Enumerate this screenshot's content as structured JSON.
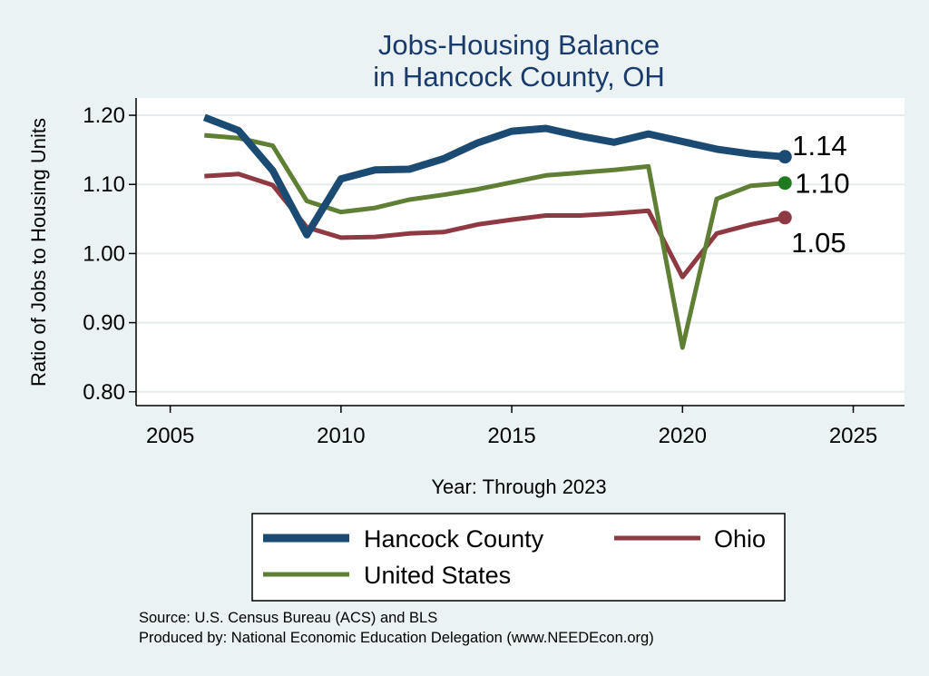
{
  "chart_data": {
    "type": "line",
    "title": [
      "Jobs-Housing Balance",
      "in Hancock County, OH"
    ],
    "xlabel": "Year: Through 2023",
    "ylabel": "Ratio of Jobs to Housing Units",
    "xlim": [
      2004,
      2026.5
    ],
    "ylim": [
      0.78,
      1.225
    ],
    "xticks": [
      2005,
      2010,
      2015,
      2020,
      2025
    ],
    "yticks": [
      0.8,
      0.9,
      1.0,
      1.1,
      1.2
    ],
    "ytick_labels": [
      "0.80",
      "0.90",
      "1.00",
      "1.10",
      "1.20"
    ],
    "grid": true,
    "x": [
      2006,
      2007,
      2008,
      2009,
      2010,
      2011,
      2012,
      2013,
      2014,
      2015,
      2016,
      2017,
      2018,
      2019,
      2020,
      2021,
      2022,
      2023
    ],
    "series": [
      {
        "name": "Hancock County",
        "color": "#1b4a72",
        "values": [
          1.197,
          1.178,
          1.12,
          1.027,
          1.108,
          1.121,
          1.122,
          1.137,
          1.16,
          1.177,
          1.181,
          1.17,
          1.161,
          1.173,
          1.162,
          1.151,
          1.144,
          1.14
        ],
        "end_label": "1.14"
      },
      {
        "name": "Ohio",
        "color": "#8f3a42",
        "values": [
          1.112,
          1.115,
          1.099,
          1.038,
          1.023,
          1.024,
          1.029,
          1.031,
          1.042,
          1.049,
          1.055,
          1.055,
          1.058,
          1.062,
          0.966,
          1.029,
          1.042,
          1.052
        ],
        "end_label": "1.05"
      },
      {
        "name": "United States",
        "color": "#5e7f34",
        "end_color": "#1f7a1f",
        "values": [
          1.171,
          1.167,
          1.156,
          1.076,
          1.06,
          1.066,
          1.078,
          1.085,
          1.093,
          1.103,
          1.113,
          1.117,
          1.121,
          1.126,
          0.864,
          1.079,
          1.098,
          1.102
        ],
        "end_label": "1.10"
      }
    ],
    "legend": [
      "Hancock County",
      "Ohio",
      "United States"
    ]
  },
  "source": {
    "line1": "Source: U.S. Census Bureau (ACS) and BLS",
    "line2": "Produced by: National Economic Education Delegation (www.NEEDEcon.org)"
  }
}
